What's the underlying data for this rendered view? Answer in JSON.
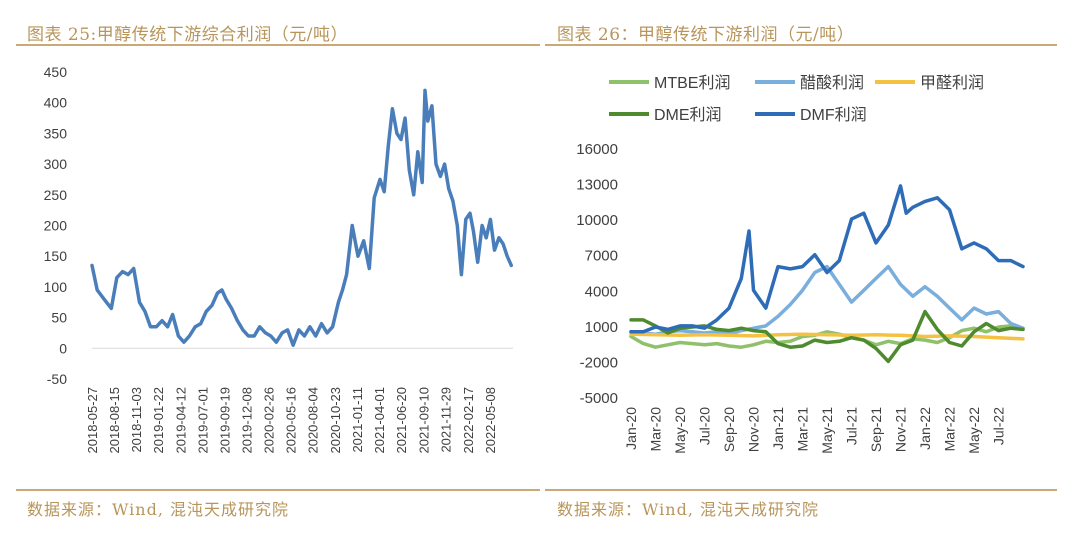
{
  "left": {
    "title": "图表 25:甲醇传统下游综合利润（元/吨）",
    "source": "数据来源：Wind, 混沌天成研究院",
    "chart_data": {
      "type": "line",
      "title": "",
      "xlabel": "",
      "ylabel": "",
      "ylim": [
        -50,
        450
      ],
      "yticks": [
        -50,
        0,
        50,
        100,
        150,
        200,
        250,
        300,
        350,
        400,
        450
      ],
      "xlim": [
        "2018-05-27",
        "2022-07-31"
      ],
      "xticks": [
        "2018-05-27",
        "2018-08-15",
        "2018-11-03",
        "2019-01-22",
        "2019-04-12",
        "2019-07-01",
        "2019-09-19",
        "2019-12-08",
        "2020-02-26",
        "2020-05-16",
        "2020-08-04",
        "2020-10-23",
        "2021-01-11",
        "2021-04-01",
        "2021-06-20",
        "2021-09-10",
        "2021-11-29",
        "2022-02-17",
        "2022-05-08"
      ],
      "grid": false,
      "color": "#4a7ebb",
      "series": [
        {
          "x": [
            "2018-05-27",
            "2018-06-15",
            "2018-07-10",
            "2018-08-05",
            "2018-08-25",
            "2018-09-15",
            "2018-10-05",
            "2018-10-25",
            "2018-11-15",
            "2018-12-05",
            "2018-12-25",
            "2019-01-15",
            "2019-02-05",
            "2019-02-25",
            "2019-03-15",
            "2019-04-05",
            "2019-04-25",
            "2019-05-15",
            "2019-06-05",
            "2019-06-25",
            "2019-07-15",
            "2019-08-05",
            "2019-08-25",
            "2019-09-10",
            "2019-09-25",
            "2019-10-15",
            "2019-11-05",
            "2019-11-25",
            "2019-12-15",
            "2020-01-05",
            "2020-01-25",
            "2020-02-15",
            "2020-03-05",
            "2020-03-25",
            "2020-04-15",
            "2020-05-05",
            "2020-05-25",
            "2020-06-15",
            "2020-07-05",
            "2020-07-25",
            "2020-08-15",
            "2020-09-05",
            "2020-09-25",
            "2020-10-15",
            "2020-11-05",
            "2020-11-20",
            "2020-12-05",
            "2020-12-25",
            "2021-01-15",
            "2021-02-05",
            "2021-02-25",
            "2021-03-15",
            "2021-04-05",
            "2021-04-20",
            "2021-05-05",
            "2021-05-20",
            "2021-06-05",
            "2021-06-20",
            "2021-07-05",
            "2021-07-20",
            "2021-08-05",
            "2021-08-20",
            "2021-09-05",
            "2021-09-15",
            "2021-09-25",
            "2021-10-10",
            "2021-10-25",
            "2021-11-10",
            "2021-11-25",
            "2021-12-10",
            "2021-12-25",
            "2022-01-10",
            "2022-01-25",
            "2022-02-10",
            "2022-02-25",
            "2022-03-10",
            "2022-03-25",
            "2022-04-10",
            "2022-04-25",
            "2022-05-10",
            "2022-05-25",
            "2022-06-10",
            "2022-06-25",
            "2022-07-10",
            "2022-07-25"
          ],
          "y": [
            135,
            95,
            80,
            65,
            115,
            125,
            120,
            130,
            75,
            60,
            35,
            35,
            45,
            35,
            55,
            20,
            10,
            20,
            35,
            40,
            60,
            70,
            90,
            95,
            80,
            65,
            45,
            30,
            20,
            20,
            35,
            25,
            20,
            10,
            25,
            30,
            5,
            30,
            20,
            35,
            20,
            40,
            25,
            35,
            75,
            95,
            120,
            200,
            150,
            175,
            130,
            245,
            275,
            255,
            330,
            390,
            350,
            340,
            375,
            290,
            250,
            320,
            270,
            420,
            370,
            395,
            300,
            280,
            300,
            260,
            240,
            200,
            120,
            210,
            220,
            190,
            140,
            200,
            180,
            210,
            160,
            180,
            170,
            150,
            135
          ]
        }
      ]
    }
  },
  "right": {
    "title": "图表 26：甲醇传统下游利润（元/吨）",
    "source": "数据来源：Wind, 混沌天成研究院",
    "chart_data": {
      "type": "line",
      "title": "",
      "xlabel": "",
      "ylabel": "",
      "ylim": [
        -5000,
        16000
      ],
      "yticks": [
        -5000,
        -2000,
        1000,
        4000,
        7000,
        10000,
        13000,
        16000
      ],
      "xlim": [
        "2020-01",
        "2022-09"
      ],
      "xticks": [
        "Jan-20",
        "Mar-20",
        "May-20",
        "Jul-20",
        "Sep-20",
        "Nov-20",
        "Jan-21",
        "Mar-21",
        "May-21",
        "Jul-21",
        "Sep-21",
        "Nov-21",
        "Jan-22",
        "Mar-22",
        "May-22",
        "Jul-22"
      ],
      "legend_position": "top",
      "grid": false,
      "series": [
        {
          "name": "MTBE利润",
          "color": "#8fc16a",
          "x": [
            "2020-01",
            "2020-02",
            "2020-03",
            "2020-04",
            "2020-05",
            "2020-06",
            "2020-07",
            "2020-08",
            "2020-09",
            "2020-10",
            "2020-11",
            "2020-12",
            "2021-01",
            "2021-02",
            "2021-03",
            "2021-04",
            "2021-05",
            "2021-06",
            "2021-07",
            "2021-08",
            "2021-09",
            "2021-10",
            "2021-11",
            "2021-12",
            "2022-01",
            "2022-02",
            "2022-03",
            "2022-04",
            "2022-05",
            "2022-06",
            "2022-07",
            "2022-08",
            "2022-09"
          ],
          "y": [
            100,
            -500,
            -800,
            -600,
            -400,
            -500,
            -600,
            -500,
            -700,
            -800,
            -600,
            -300,
            -400,
            -300,
            100,
            200,
            500,
            300,
            0,
            -200,
            -600,
            -300,
            -500,
            -100,
            -200,
            -400,
            0,
            600,
            800,
            500,
            900,
            1000,
            800
          ]
        },
        {
          "name": "醋酸利润",
          "color": "#7aaedc",
          "x": [
            "2020-01",
            "2020-02",
            "2020-03",
            "2020-04",
            "2020-05",
            "2020-06",
            "2020-07",
            "2020-08",
            "2020-09",
            "2020-10",
            "2020-11",
            "2020-12",
            "2021-01",
            "2021-02",
            "2021-03",
            "2021-04",
            "2021-05",
            "2021-06",
            "2021-07",
            "2021-08",
            "2021-09",
            "2021-10",
            "2021-11",
            "2021-12",
            "2022-01",
            "2022-02",
            "2022-03",
            "2022-04",
            "2022-05",
            "2022-06",
            "2022-07",
            "2022-08",
            "2022-09"
          ],
          "y": [
            500,
            400,
            300,
            500,
            600,
            500,
            400,
            500,
            300,
            600,
            800,
            1000,
            1800,
            2800,
            4000,
            5500,
            6000,
            4500,
            3000,
            4000,
            5000,
            6000,
            4500,
            3500,
            4300,
            3500,
            2500,
            1500,
            2500,
            2000,
            2200,
            1200,
            800
          ]
        },
        {
          "name": "甲醛利润",
          "color": "#f5c142",
          "x": [
            "2020-01",
            "2020-03",
            "2020-05",
            "2020-07",
            "2020-09",
            "2020-11",
            "2021-01",
            "2021-03",
            "2021-05",
            "2021-07",
            "2021-09",
            "2021-11",
            "2022-01",
            "2022-03",
            "2022-05",
            "2022-07",
            "2022-09"
          ],
          "y": [
            300,
            250,
            200,
            250,
            200,
            150,
            250,
            300,
            250,
            200,
            250,
            200,
            100,
            150,
            100,
            0,
            -100
          ]
        },
        {
          "name": "DME利润",
          "color": "#4e8a2e",
          "x": [
            "2020-01",
            "2020-02",
            "2020-03",
            "2020-04",
            "2020-05",
            "2020-06",
            "2020-07",
            "2020-08",
            "2020-09",
            "2020-10",
            "2020-11",
            "2020-12",
            "2021-01",
            "2021-02",
            "2021-03",
            "2021-04",
            "2021-05",
            "2021-06",
            "2021-07",
            "2021-08",
            "2021-09",
            "2021-10",
            "2021-11",
            "2021-12",
            "2022-01",
            "2022-02",
            "2022-03",
            "2022-04",
            "2022-05",
            "2022-06",
            "2022-07",
            "2022-08",
            "2022-09"
          ],
          "y": [
            1500,
            1500,
            1000,
            400,
            800,
            900,
            1000,
            700,
            600,
            800,
            600,
            500,
            -500,
            -800,
            -700,
            -200,
            -400,
            -300,
            0,
            -200,
            -900,
            -2000,
            -600,
            -200,
            2200,
            700,
            -400,
            -700,
            500,
            1200,
            600,
            800,
            700
          ]
        },
        {
          "name": "DMF利润",
          "color": "#2e6cb8",
          "x": [
            "2020-01",
            "2020-02",
            "2020-03",
            "2020-04",
            "2020-05",
            "2020-06",
            "2020-07",
            "2020-08",
            "2020-09",
            "2020-10",
            "2020-10-20",
            "2020-11",
            "2020-12",
            "2021-01",
            "2021-02",
            "2021-03",
            "2021-04",
            "2021-05",
            "2021-06",
            "2021-07",
            "2021-08",
            "2021-09",
            "2021-10",
            "2021-11",
            "2021-11-15",
            "2021-12",
            "2022-01",
            "2022-02",
            "2022-03",
            "2022-04",
            "2022-05",
            "2022-06",
            "2022-07",
            "2022-08",
            "2022-09"
          ],
          "y": [
            500,
            500,
            900,
            700,
            1000,
            1000,
            800,
            1500,
            2500,
            5000,
            9000,
            4000,
            2500,
            6000,
            5800,
            6000,
            7000,
            5500,
            6500,
            10000,
            10500,
            8000,
            9500,
            12800,
            10500,
            11000,
            11500,
            11800,
            10800,
            7500,
            8000,
            7500,
            6500,
            6500,
            6000
          ]
        }
      ]
    }
  }
}
